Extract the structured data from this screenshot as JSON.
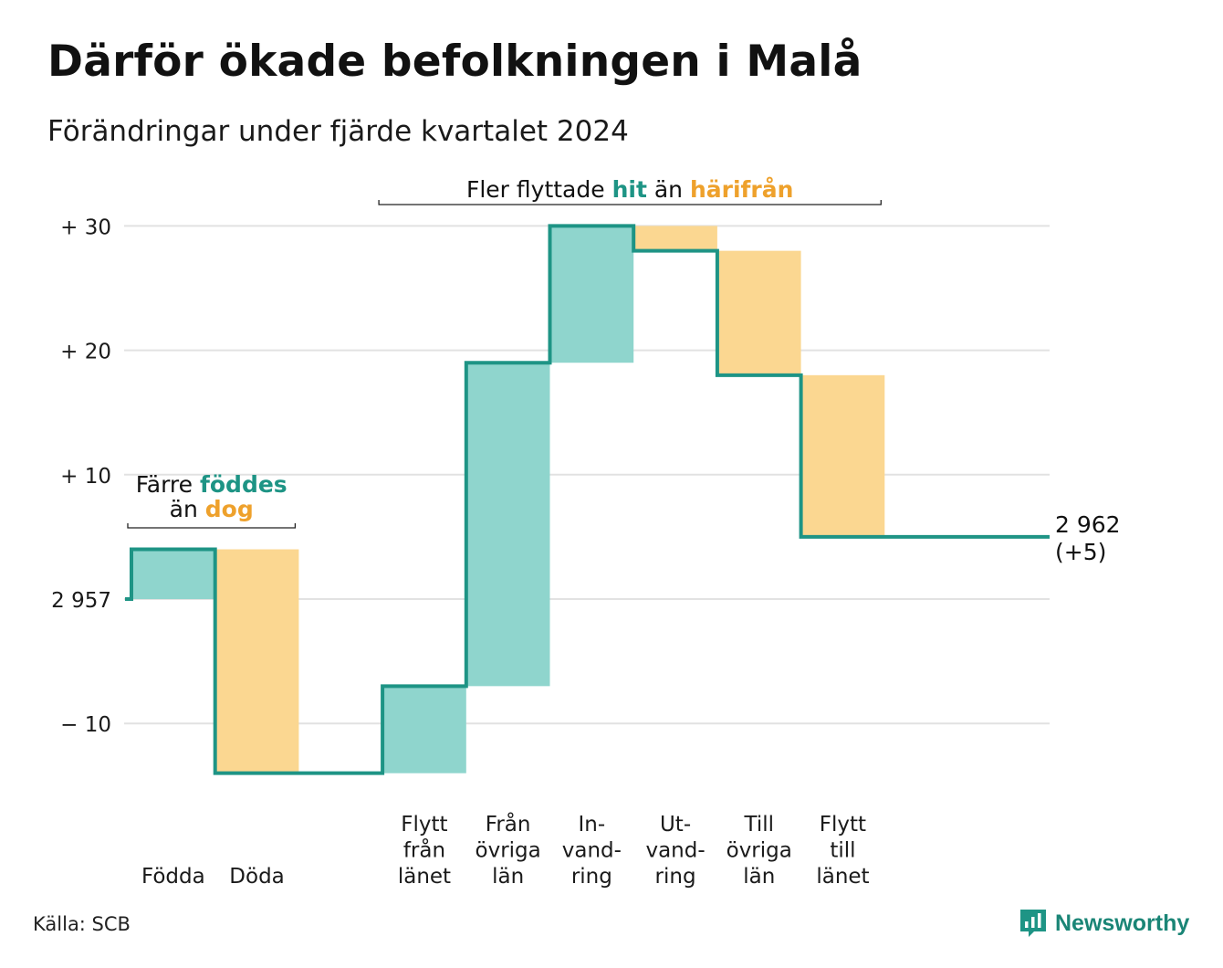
{
  "header": {
    "title": "Därför ökade befolkningen i Malå",
    "subtitle": "Förändringar under fjärde kvartalet 2024"
  },
  "footer": {
    "source": "Källa: SCB",
    "brand": "Newsworthy",
    "brand_icon": "newsworthy-logo-icon"
  },
  "colors": {
    "increase_fill": "#8fd5cd",
    "decrease_fill": "#fbd791",
    "line": "#1e9485",
    "teal_text": "#1e9485",
    "orange_text": "#eea12c",
    "grid": "#e2e2e2"
  },
  "chart_data": {
    "type": "waterfall",
    "baseline_label": "2 957",
    "start_value": 0,
    "steps": [
      {
        "label": [
          "Födda"
        ],
        "change": 4
      },
      {
        "label": [
          "Döda"
        ],
        "change": -18
      },
      {
        "label": [],
        "change": 0
      },
      {
        "label": [
          "Flytt",
          "från",
          "länet"
        ],
        "change": 7
      },
      {
        "label": [
          "Från",
          "övriga",
          "län"
        ],
        "change": 26
      },
      {
        "label": [
          "In-",
          "vand-",
          "ring"
        ],
        "change": 11
      },
      {
        "label": [
          "Ut-",
          "vand-",
          "ring"
        ],
        "change": -2
      },
      {
        "label": [
          "Till",
          "övriga",
          "län"
        ],
        "change": -10
      },
      {
        "label": [
          "Flytt",
          "till",
          "länet"
        ],
        "change": -13
      },
      {
        "label": [],
        "change": 0
      }
    ],
    "end_label": [
      "2 962",
      "(+5)"
    ],
    "y_ticks": [
      {
        "value": 30,
        "label": "+ 30"
      },
      {
        "value": 20,
        "label": "+ 20"
      },
      {
        "value": 10,
        "label": "+ 10"
      },
      {
        "value": 0,
        "label": "2 957"
      },
      {
        "value": -10,
        "label": "− 10"
      }
    ],
    "ylim": [
      -14,
      30
    ],
    "annotations": [
      {
        "span": [
          0,
          1
        ],
        "parts": [
          {
            "lines": [
              [
                {
                  "text": "Färre ",
                  "color": "dark"
                },
                {
                  "text": "föddes",
                  "color": "teal",
                  "bold": true
                }
              ],
              [
                {
                  "text": "än ",
                  "color": "dark"
                },
                {
                  "text": "dog",
                  "color": "orange",
                  "bold": true
                }
              ]
            ]
          }
        ]
      },
      {
        "span": [
          3,
          8
        ],
        "parts": [
          {
            "lines": [
              [
                {
                  "text": "Fler flyttade ",
                  "color": "dark"
                },
                {
                  "text": "hit",
                  "color": "teal",
                  "bold": true
                },
                {
                  "text": " än ",
                  "color": "dark"
                },
                {
                  "text": "härifrån",
                  "color": "orange",
                  "bold": true
                }
              ]
            ]
          }
        ]
      }
    ]
  }
}
